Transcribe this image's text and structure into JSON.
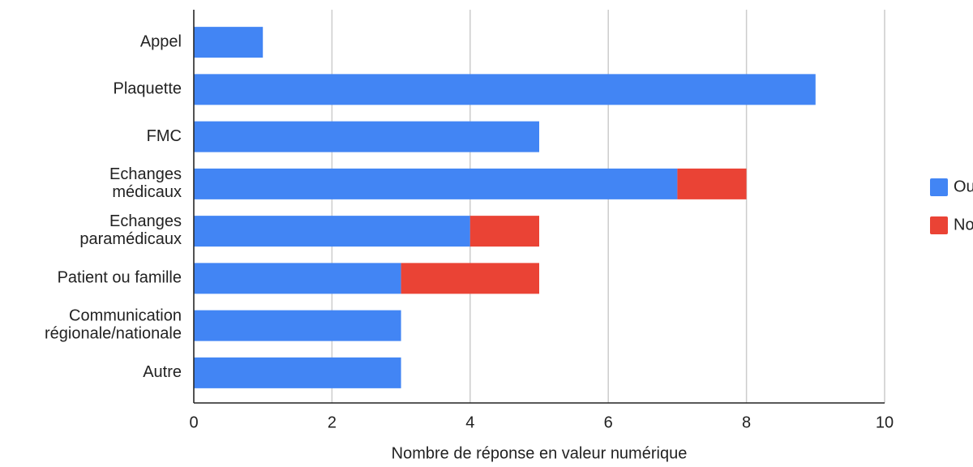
{
  "chart_data": {
    "type": "stacked_bar_horizontal",
    "categories": [
      "Appel",
      "Plaquette",
      "FMC",
      "Echanges\nmédicaux",
      "Echanges\nparamédicaux",
      "Patient ou famille",
      "Communication\nrégionale/nationale",
      "Autre"
    ],
    "series": [
      {
        "name": "Oui",
        "color": "#4285f4",
        "values": [
          1,
          9,
          5,
          7,
          4,
          3,
          3,
          3
        ]
      },
      {
        "name": "Non",
        "color": "#ea4335",
        "values": [
          0,
          0,
          0,
          1,
          1,
          2,
          0,
          0
        ]
      }
    ],
    "xlim": [
      0,
      10
    ],
    "xticks": [
      0,
      2,
      4,
      6,
      8,
      10
    ],
    "x_label": "Nombre de réponse en valeur numérique",
    "grid": true,
    "legend": "right"
  }
}
